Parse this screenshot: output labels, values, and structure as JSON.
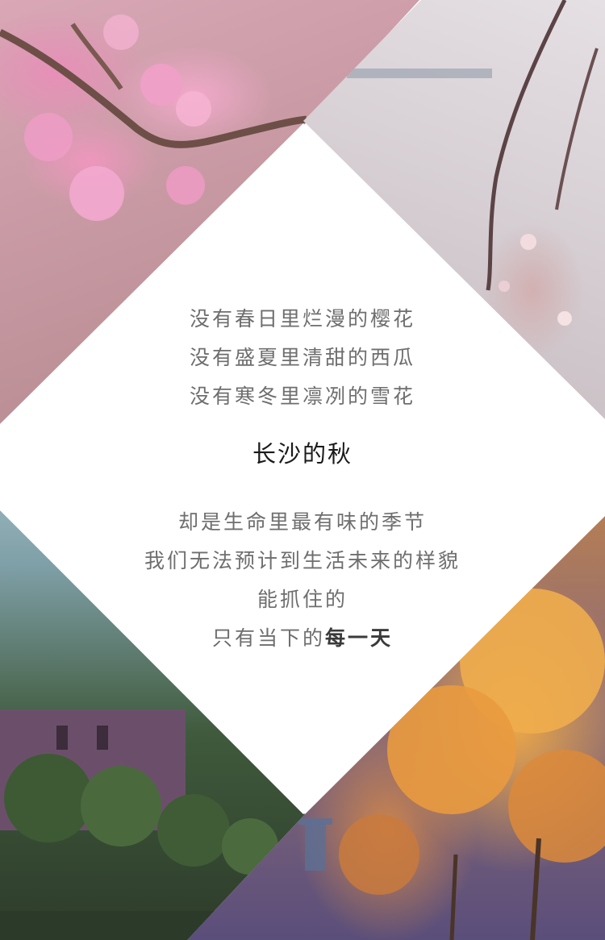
{
  "verse_top": [
    "没有春日里烂漫的樱花",
    "没有盛夏里清甜的西瓜",
    "没有寒冬里凛冽的雪花"
  ],
  "heading": "长沙的秋",
  "verse_bottom": [
    "却是生命里最有味的季节",
    "我们无法预计到生活未来的样貌",
    "能抓住的"
  ],
  "last_line_lead": "只有当下的",
  "last_line_emphasis": "每一天",
  "colors": {
    "diamond_fill": "#ffffff",
    "verse_text": "#6e6e6e",
    "heading_text": "#1a1a1a"
  },
  "photos": [
    "cherry-blossom-branch",
    "spring-blossom-twigs",
    "campus-building-trees",
    "autumn-ginkgo-trees"
  ]
}
